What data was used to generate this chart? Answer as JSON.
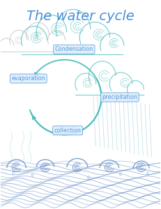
{
  "title": "The water cycle",
  "title_color": "#4a90d9",
  "background_color": "#ffffff",
  "labels": {
    "condensation": "Condensation",
    "evaporation": "evaporation",
    "precipitation": "precipitation",
    "collection": "collection"
  },
  "label_bg": "#ddeeff",
  "label_color": "#5b9bd5",
  "arrow_color": "#4bbcbc",
  "wave_color": "#4a7abf",
  "wave_color2": "#5bc8c8",
  "cloud_color_main": "#4bbcbc",
  "cloud_color_gray": "#aab0b8",
  "rain_color": "#8cc8d8",
  "title_fontsize": 14
}
